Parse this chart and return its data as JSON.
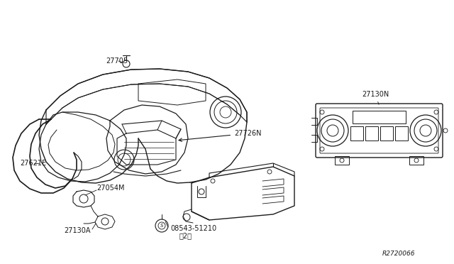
{
  "bg_color": "#ffffff",
  "line_color": "#1a1a1a",
  "lw": 0.8,
  "fig_width": 6.4,
  "fig_height": 3.72,
  "xlim": [
    0,
    640
  ],
  "ylim": [
    0,
    372
  ]
}
